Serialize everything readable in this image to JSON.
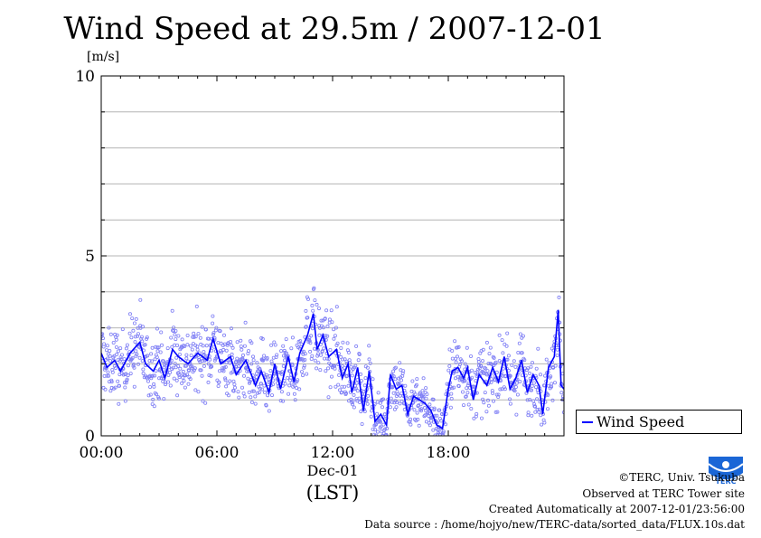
{
  "chart_data": {
    "type": "scatter",
    "title": "Wind Speed at 29.5m / 2007-12-01",
    "ylabel": "[m/s]",
    "xlabel": "(LST)",
    "date_label": "Dec-01",
    "x_ticks": [
      {
        "hour": 0,
        "label": "00:00"
      },
      {
        "hour": 6,
        "label": "06:00"
      },
      {
        "hour": 12,
        "label": "12:00"
      },
      {
        "hour": 18,
        "label": "18:00"
      }
    ],
    "xlim": [
      0,
      24
    ],
    "ylim": [
      0,
      10
    ],
    "y_ticks": [
      0,
      5,
      10
    ],
    "grid": "horizontal, every 1 m/s",
    "legend_position": "right, outside plot",
    "series": [
      {
        "name": "Wind Speed",
        "color": "#0000ff",
        "markers": "10-second samples, open circles, light blue",
        "mean_line": [
          {
            "x": 0.0,
            "y": 2.3
          },
          {
            "x": 0.3,
            "y": 1.9
          },
          {
            "x": 0.7,
            "y": 2.1
          },
          {
            "x": 1.0,
            "y": 1.8
          },
          {
            "x": 1.5,
            "y": 2.3
          },
          {
            "x": 2.0,
            "y": 2.6
          },
          {
            "x": 2.3,
            "y": 2.0
          },
          {
            "x": 2.7,
            "y": 1.8
          },
          {
            "x": 3.0,
            "y": 2.1
          },
          {
            "x": 3.3,
            "y": 1.6
          },
          {
            "x": 3.7,
            "y": 2.4
          },
          {
            "x": 4.0,
            "y": 2.2
          },
          {
            "x": 4.5,
            "y": 2.0
          },
          {
            "x": 5.0,
            "y": 2.3
          },
          {
            "x": 5.5,
            "y": 2.1
          },
          {
            "x": 5.8,
            "y": 2.7
          },
          {
            "x": 6.2,
            "y": 2.0
          },
          {
            "x": 6.7,
            "y": 2.2
          },
          {
            "x": 7.0,
            "y": 1.7
          },
          {
            "x": 7.5,
            "y": 2.1
          },
          {
            "x": 8.0,
            "y": 1.4
          },
          {
            "x": 8.3,
            "y": 1.8
          },
          {
            "x": 8.7,
            "y": 1.2
          },
          {
            "x": 9.0,
            "y": 2.0
          },
          {
            "x": 9.3,
            "y": 1.3
          },
          {
            "x": 9.7,
            "y": 2.2
          },
          {
            "x": 10.0,
            "y": 1.5
          },
          {
            "x": 10.3,
            "y": 2.3
          },
          {
            "x": 10.7,
            "y": 2.8
          },
          {
            "x": 11.0,
            "y": 3.4
          },
          {
            "x": 11.2,
            "y": 2.4
          },
          {
            "x": 11.5,
            "y": 2.8
          },
          {
            "x": 11.8,
            "y": 2.2
          },
          {
            "x": 12.2,
            "y": 2.4
          },
          {
            "x": 12.5,
            "y": 1.6
          },
          {
            "x": 12.8,
            "y": 2.0
          },
          {
            "x": 13.0,
            "y": 1.2
          },
          {
            "x": 13.3,
            "y": 1.9
          },
          {
            "x": 13.6,
            "y": 0.7
          },
          {
            "x": 13.9,
            "y": 1.8
          },
          {
            "x": 14.2,
            "y": 0.4
          },
          {
            "x": 14.5,
            "y": 0.6
          },
          {
            "x": 14.8,
            "y": 0.3
          },
          {
            "x": 15.0,
            "y": 1.7
          },
          {
            "x": 15.3,
            "y": 1.3
          },
          {
            "x": 15.6,
            "y": 1.4
          },
          {
            "x": 15.9,
            "y": 0.6
          },
          {
            "x": 16.2,
            "y": 1.1
          },
          {
            "x": 16.5,
            "y": 1.0
          },
          {
            "x": 16.8,
            "y": 0.9
          },
          {
            "x": 17.1,
            "y": 0.7
          },
          {
            "x": 17.4,
            "y": 0.3
          },
          {
            "x": 17.7,
            "y": 0.2
          },
          {
            "x": 18.0,
            "y": 1.3
          },
          {
            "x": 18.2,
            "y": 1.8
          },
          {
            "x": 18.5,
            "y": 1.9
          },
          {
            "x": 18.8,
            "y": 1.6
          },
          {
            "x": 19.0,
            "y": 1.9
          },
          {
            "x": 19.3,
            "y": 1.0
          },
          {
            "x": 19.6,
            "y": 1.7
          },
          {
            "x": 20.0,
            "y": 1.4
          },
          {
            "x": 20.3,
            "y": 1.9
          },
          {
            "x": 20.6,
            "y": 1.5
          },
          {
            "x": 20.9,
            "y": 2.2
          },
          {
            "x": 21.2,
            "y": 1.3
          },
          {
            "x": 21.5,
            "y": 1.6
          },
          {
            "x": 21.8,
            "y": 2.1
          },
          {
            "x": 22.1,
            "y": 1.2
          },
          {
            "x": 22.4,
            "y": 1.7
          },
          {
            "x": 22.7,
            "y": 1.4
          },
          {
            "x": 22.9,
            "y": 0.6
          },
          {
            "x": 23.2,
            "y": 1.9
          },
          {
            "x": 23.5,
            "y": 2.2
          },
          {
            "x": 23.7,
            "y": 3.5
          },
          {
            "x": 23.85,
            "y": 1.4
          },
          {
            "x": 24.0,
            "y": 1.3
          }
        ]
      }
    ]
  },
  "footer": {
    "copyright": "©TERC, Univ. Tsukuba",
    "observed": "Observed at TERC Tower site",
    "created": "Created Automatically at 2007-12-01/23:56:00",
    "source": "Data source : /home/hojyo/new/TERC-data/sorted_data/FLUX.10s.dat"
  },
  "logo": {
    "text": "TERC",
    "color": "#0055cc"
  }
}
